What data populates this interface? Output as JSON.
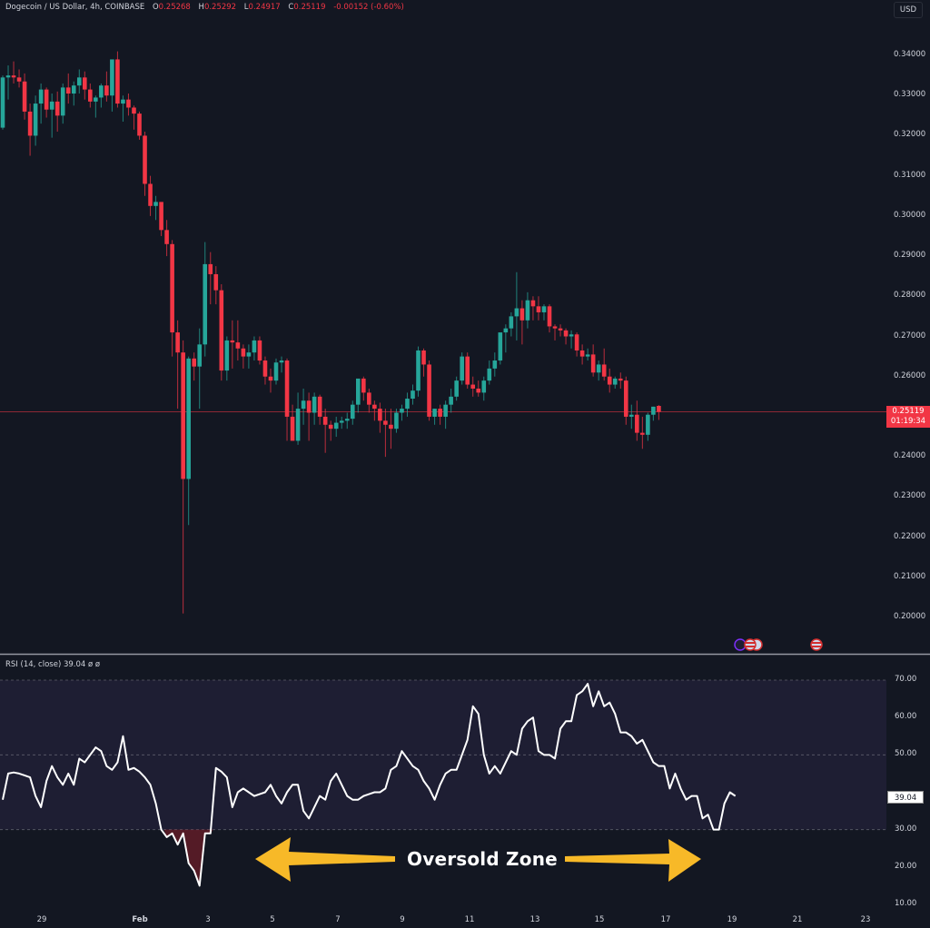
{
  "header": {
    "symbol": "Dogecoin / US Dollar, 4h, COINBASE",
    "open_label": "O",
    "open": "0.25268",
    "high_label": "H",
    "high": "0.25292",
    "low_label": "L",
    "low": "0.24917",
    "close_label": "C",
    "close": "0.25119",
    "change": "-0.00152 (-0.60%)",
    "currency": "USD"
  },
  "price_axis": {
    "labels": [
      "0.34000",
      "0.33000",
      "0.32000",
      "0.31000",
      "0.30000",
      "0.29000",
      "0.28000",
      "0.27000",
      "0.26000",
      "0.24000",
      "0.23000",
      "0.22000",
      "0.21000",
      "0.20000"
    ],
    "current_price": "0.25119",
    "countdown": "01:19:34"
  },
  "rsi": {
    "legend": "RSI (14, close)  39.04  ø  ø",
    "axis_labels": [
      "70.00",
      "60.00",
      "50.00",
      "30.00",
      "20.00",
      "10.00"
    ],
    "current_value": "39.04"
  },
  "time_axis": {
    "labels": [
      "29",
      "Feb",
      "3",
      "5",
      "7",
      "9",
      "11",
      "13",
      "15",
      "17",
      "19",
      "21",
      "23"
    ]
  },
  "annotation": {
    "text": "Oversold Zone",
    "arrow_color": "#f7b928"
  },
  "colors": {
    "background": "#131722",
    "up": "#26a69a",
    "down": "#f23645",
    "rsi_line": "#ffffff",
    "rsi_band": "#1e1e33",
    "price_line": "#f23645"
  },
  "chart_data": [
    {
      "type": "candlestick",
      "title": "Dogecoin / US Dollar, 4h, COINBASE",
      "xlabel": "",
      "ylabel": "USD",
      "ylim": [
        0.195,
        0.345
      ],
      "x_ticks": [
        "29",
        "Feb",
        "3",
        "5",
        "7",
        "9",
        "11",
        "13",
        "15",
        "17",
        "19",
        "21",
        "23"
      ],
      "y_ticks": [
        0.2,
        0.21,
        0.22,
        0.23,
        0.24,
        0.25,
        0.26,
        0.27,
        0.28,
        0.29,
        0.3,
        0.31,
        0.32,
        0.33,
        0.34
      ],
      "last": {
        "open": 0.25268,
        "high": 0.25292,
        "low": 0.24917,
        "close": 0.25119,
        "change": -0.00152,
        "change_pct": -0.6
      },
      "ohlc": [
        [
          0.322,
          0.335,
          0.3215,
          0.3345
        ],
        [
          0.3345,
          0.3375,
          0.329,
          0.335
        ],
        [
          0.335,
          0.3385,
          0.333,
          0.3345
        ],
        [
          0.3345,
          0.3365,
          0.332,
          0.3335
        ],
        [
          0.3335,
          0.3355,
          0.324,
          0.326
        ],
        [
          0.326,
          0.328,
          0.315,
          0.32
        ],
        [
          0.32,
          0.33,
          0.3175,
          0.328
        ],
        [
          0.328,
          0.333,
          0.323,
          0.3315
        ],
        [
          0.3315,
          0.332,
          0.3245,
          0.3265
        ],
        [
          0.3265,
          0.3305,
          0.3195,
          0.3285
        ],
        [
          0.3285,
          0.331,
          0.321,
          0.325
        ],
        [
          0.325,
          0.333,
          0.323,
          0.332
        ],
        [
          0.332,
          0.3355,
          0.328,
          0.3305
        ],
        [
          0.3305,
          0.3335,
          0.3275,
          0.3325
        ],
        [
          0.3325,
          0.3365,
          0.3305,
          0.3345
        ],
        [
          0.3345,
          0.336,
          0.329,
          0.3315
        ],
        [
          0.3315,
          0.333,
          0.327,
          0.3285
        ],
        [
          0.3285,
          0.33,
          0.3245,
          0.3295
        ],
        [
          0.3295,
          0.333,
          0.327,
          0.3325
        ],
        [
          0.3325,
          0.336,
          0.3285,
          0.33
        ],
        [
          0.33,
          0.337,
          0.326,
          0.339
        ],
        [
          0.339,
          0.341,
          0.327,
          0.328
        ],
        [
          0.328,
          0.33,
          0.3235,
          0.329
        ],
        [
          0.329,
          0.3305,
          0.325,
          0.327
        ],
        [
          0.327,
          0.3275,
          0.3215,
          0.3255
        ],
        [
          0.3255,
          0.326,
          0.319,
          0.32
        ],
        [
          0.32,
          0.321,
          0.305,
          0.308
        ],
        [
          0.308,
          0.31,
          0.3,
          0.3025
        ],
        [
          0.3025,
          0.305,
          0.299,
          0.3035
        ],
        [
          0.3035,
          0.303,
          0.295,
          0.2965
        ],
        [
          0.2965,
          0.299,
          0.29,
          0.293
        ],
        [
          0.293,
          0.294,
          0.265,
          0.271
        ],
        [
          0.271,
          0.274,
          0.252,
          0.266
        ],
        [
          0.266,
          0.269,
          0.201,
          0.2345
        ],
        [
          0.2345,
          0.265,
          0.223,
          0.2645
        ],
        [
          0.2645,
          0.266,
          0.259,
          0.2625
        ],
        [
          0.2625,
          0.272,
          0.252,
          0.268
        ],
        [
          0.268,
          0.2935,
          0.265,
          0.288
        ],
        [
          0.288,
          0.291,
          0.278,
          0.2855
        ],
        [
          0.2855,
          0.2875,
          0.278,
          0.2815
        ],
        [
          0.2815,
          0.283,
          0.259,
          0.2615
        ],
        [
          0.2615,
          0.27,
          0.259,
          0.269
        ],
        [
          0.269,
          0.274,
          0.262,
          0.2685
        ],
        [
          0.2685,
          0.274,
          0.264,
          0.267
        ],
        [
          0.267,
          0.268,
          0.262,
          0.265
        ],
        [
          0.265,
          0.268,
          0.262,
          0.266
        ],
        [
          0.266,
          0.27,
          0.264,
          0.269
        ],
        [
          0.269,
          0.27,
          0.263,
          0.264
        ],
        [
          0.264,
          0.265,
          0.258,
          0.26
        ],
        [
          0.26,
          0.262,
          0.256,
          0.259
        ],
        [
          0.259,
          0.2645,
          0.258,
          0.2635
        ],
        [
          0.2635,
          0.265,
          0.261,
          0.264
        ],
        [
          0.264,
          0.2645,
          0.244,
          0.25
        ],
        [
          0.25,
          0.253,
          0.244,
          0.244
        ],
        [
          0.244,
          0.256,
          0.243,
          0.252
        ],
        [
          0.252,
          0.257,
          0.248,
          0.254
        ],
        [
          0.254,
          0.256,
          0.244,
          0.251
        ],
        [
          0.251,
          0.256,
          0.248,
          0.255
        ],
        [
          0.255,
          0.2555,
          0.248,
          0.25
        ],
        [
          0.25,
          0.252,
          0.241,
          0.248
        ],
        [
          0.248,
          0.249,
          0.244,
          0.247
        ],
        [
          0.247,
          0.25,
          0.245,
          0.2485
        ],
        [
          0.2485,
          0.25,
          0.247,
          0.249
        ],
        [
          0.249,
          0.251,
          0.247,
          0.2495
        ],
        [
          0.2495,
          0.254,
          0.248,
          0.253
        ],
        [
          0.253,
          0.257,
          0.251,
          0.2595
        ],
        [
          0.2595,
          0.26,
          0.254,
          0.256
        ],
        [
          0.256,
          0.257,
          0.251,
          0.253
        ],
        [
          0.253,
          0.254,
          0.249,
          0.252
        ],
        [
          0.252,
          0.2535,
          0.246,
          0.249
        ],
        [
          0.249,
          0.252,
          0.24,
          0.248
        ],
        [
          0.248,
          0.252,
          0.242,
          0.247
        ],
        [
          0.247,
          0.252,
          0.246,
          0.251
        ],
        [
          0.251,
          0.253,
          0.249,
          0.252
        ],
        [
          0.252,
          0.256,
          0.25,
          0.2545
        ],
        [
          0.2545,
          0.258,
          0.253,
          0.2565
        ],
        [
          0.2565,
          0.2675,
          0.255,
          0.2665
        ],
        [
          0.2665,
          0.267,
          0.26,
          0.263
        ],
        [
          0.263,
          0.264,
          0.249,
          0.25
        ],
        [
          0.25,
          0.252,
          0.248,
          0.252
        ],
        [
          0.252,
          0.253,
          0.248,
          0.25
        ],
        [
          0.25,
          0.254,
          0.247,
          0.253
        ],
        [
          0.253,
          0.257,
          0.251,
          0.255
        ],
        [
          0.255,
          0.26,
          0.254,
          0.259
        ],
        [
          0.259,
          0.266,
          0.258,
          0.265
        ],
        [
          0.265,
          0.266,
          0.257,
          0.258
        ],
        [
          0.258,
          0.26,
          0.255,
          0.257
        ],
        [
          0.257,
          0.259,
          0.255,
          0.256
        ],
        [
          0.256,
          0.26,
          0.254,
          0.259
        ],
        [
          0.259,
          0.264,
          0.258,
          0.262
        ],
        [
          0.262,
          0.266,
          0.26,
          0.264
        ],
        [
          0.264,
          0.27,
          0.263,
          0.271
        ],
        [
          0.271,
          0.273,
          0.266,
          0.272
        ],
        [
          0.272,
          0.276,
          0.27,
          0.275
        ],
        [
          0.275,
          0.286,
          0.269,
          0.277
        ],
        [
          0.277,
          0.279,
          0.268,
          0.274
        ],
        [
          0.274,
          0.281,
          0.272,
          0.279
        ],
        [
          0.279,
          0.28,
          0.274,
          0.2775
        ],
        [
          0.2775,
          0.28,
          0.274,
          0.276
        ],
        [
          0.276,
          0.278,
          0.274,
          0.2775
        ],
        [
          0.2775,
          0.278,
          0.271,
          0.2725
        ],
        [
          0.2725,
          0.273,
          0.269,
          0.272
        ],
        [
          0.272,
          0.273,
          0.27,
          0.2715
        ],
        [
          0.2715,
          0.272,
          0.268,
          0.27
        ],
        [
          0.27,
          0.2715,
          0.267,
          0.2705
        ],
        [
          0.2705,
          0.271,
          0.265,
          0.2665
        ],
        [
          0.2665,
          0.268,
          0.263,
          0.265
        ],
        [
          0.265,
          0.267,
          0.264,
          0.2655
        ],
        [
          0.2655,
          0.268,
          0.26,
          0.261
        ],
        [
          0.261,
          0.264,
          0.259,
          0.263
        ],
        [
          0.263,
          0.267,
          0.259,
          0.26
        ],
        [
          0.26,
          0.262,
          0.256,
          0.258
        ],
        [
          0.258,
          0.26,
          0.257,
          0.2595
        ],
        [
          0.2595,
          0.261,
          0.257,
          0.259
        ],
        [
          0.259,
          0.26,
          0.248,
          0.25
        ],
        [
          0.25,
          0.253,
          0.247,
          0.2505
        ],
        [
          0.2505,
          0.254,
          0.244,
          0.246
        ],
        [
          0.246,
          0.25,
          0.242,
          0.2455
        ],
        [
          0.2455,
          0.251,
          0.244,
          0.2505
        ],
        [
          0.2505,
          0.2525,
          0.249,
          0.2525
        ],
        [
          0.2527,
          0.2529,
          0.2492,
          0.2512
        ]
      ]
    },
    {
      "type": "line",
      "title": "RSI (14, close)",
      "ylim": [
        7,
        72
      ],
      "y_ticks": [
        10,
        20,
        30,
        50,
        60,
        70
      ],
      "bands": {
        "upper": 70,
        "middle": 50,
        "lower": 30
      },
      "current": 39.04,
      "values": [
        38,
        45,
        45.3,
        45,
        44.5,
        44,
        39,
        36,
        43,
        47,
        44,
        42,
        45,
        42,
        49,
        48,
        50,
        52,
        51,
        47,
        46,
        48,
        55,
        46,
        46.5,
        45.5,
        44,
        42,
        37,
        30,
        28,
        29,
        26,
        29,
        21,
        19,
        15,
        29,
        29,
        46.5,
        45.5,
        44,
        36,
        40,
        41,
        40,
        39,
        39.5,
        40,
        42,
        39,
        37,
        40,
        42,
        42,
        35,
        33,
        36,
        39,
        38,
        43,
        45,
        42,
        39,
        38,
        38,
        39,
        39.5,
        40,
        40,
        41,
        46,
        47,
        51,
        49,
        47,
        46,
        43,
        41,
        38,
        42,
        45,
        46,
        46,
        50,
        54,
        63,
        61,
        50,
        45,
        47,
        45,
        48,
        51,
        50,
        57,
        59,
        60,
        51,
        50,
        50,
        49,
        57,
        59,
        59,
        66,
        67,
        69,
        63,
        67,
        63,
        64,
        61,
        56,
        56,
        55,
        53,
        54,
        51,
        48,
        47,
        47,
        41,
        45,
        41,
        38,
        39,
        39,
        33,
        34,
        30,
        30,
        37,
        40,
        39
      ]
    }
  ]
}
